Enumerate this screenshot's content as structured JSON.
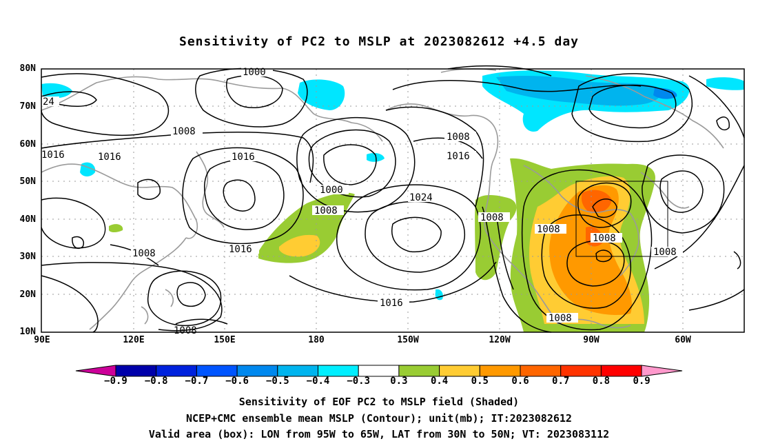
{
  "title": "Sensitivity of PC2 to MSLP at 2023082612 +4.5 day",
  "lat_labels": [
    "80N",
    "70N",
    "60N",
    "50N",
    "40N",
    "30N",
    "20N",
    "10N"
  ],
  "lon_labels": [
    "90E",
    "120E",
    "150E",
    "180",
    "150W",
    "120W",
    "90W",
    "60W"
  ],
  "contour_labels": {
    "c1000a": "1000",
    "c1000b": "1000",
    "c1008a": "1008",
    "c1008b": "1008",
    "c1008c": "1008",
    "c1008d": "1008",
    "c1008e": "1008",
    "c1008f": "1008",
    "c1008g": "1008",
    "c1008h": "1008",
    "c1008i": "1008",
    "c1016a": "1016",
    "c1016b": "1016",
    "c1016c": "1016",
    "c1016d": "1016",
    "c1016e": "1016",
    "c1016f": "1016",
    "c1024": "1024",
    "c24": "24"
  },
  "colorbar": {
    "ticks": [
      "−0.9",
      "−0.8",
      "−0.7",
      "−0.6",
      "−0.5",
      "−0.4",
      "−0.3",
      "0.3",
      "0.4",
      "0.5",
      "0.6",
      "0.7",
      "0.8",
      "0.9"
    ],
    "colors": [
      "#0000aa",
      "#0022dd",
      "#0055ff",
      "#0088ee",
      "#00b4ee",
      "#00eeff",
      "#ffffff",
      "#99cc33",
      "#ffcc33",
      "#ff9900",
      "#ff6600",
      "#ff3300",
      "#ff0000"
    ],
    "low_tip_color": "#cc0099",
    "high_tip_color": "#ff99cc"
  },
  "caption": {
    "line1": "Sensitivity of EOF PC2 to MSLP field (Shaded)",
    "line2": "NCEP+CMC ensemble mean MSLP (Contour); unit(mb); IT:2023082612",
    "line3": "Valid area (box): LON from 95W to 65W, LAT from 30N to 50N; VT: 2023083112"
  }
}
